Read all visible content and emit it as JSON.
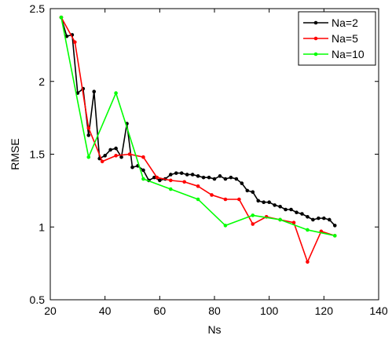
{
  "chart_data": {
    "type": "line",
    "title": "",
    "xlabel": "Ns",
    "ylabel": "RMSE",
    "xlim": [
      20,
      140
    ],
    "ylim": [
      0.5,
      2.5
    ],
    "xticks": [
      20,
      40,
      60,
      80,
      100,
      120,
      140
    ],
    "yticks": [
      0.5,
      1,
      1.5,
      2,
      2.5
    ],
    "xtick_labels": [
      "20",
      "40",
      "60",
      "80",
      "100",
      "120",
      "140"
    ],
    "ytick_labels": [
      "0.5",
      "1",
      "1.5",
      "2",
      "2.5"
    ],
    "grid": false,
    "legend_position": "top-right",
    "series": [
      {
        "name": "Na=2",
        "color": "#000000",
        "x": [
          24,
          26,
          28,
          30,
          32,
          34,
          36,
          38,
          40,
          42,
          44,
          46,
          48,
          50,
          52,
          54,
          56,
          58,
          60,
          62,
          64,
          66,
          68,
          70,
          72,
          74,
          76,
          78,
          80,
          82,
          84,
          86,
          88,
          90,
          92,
          94,
          96,
          98,
          100,
          102,
          104,
          106,
          108,
          110,
          112,
          114,
          116,
          118,
          120,
          122,
          124
        ],
        "y": [
          2.44,
          2.31,
          2.32,
          1.92,
          1.95,
          1.63,
          1.93,
          1.47,
          1.49,
          1.53,
          1.54,
          1.48,
          1.71,
          1.41,
          1.42,
          1.39,
          1.32,
          1.34,
          1.32,
          1.33,
          1.36,
          1.37,
          1.37,
          1.36,
          1.36,
          1.35,
          1.34,
          1.34,
          1.33,
          1.35,
          1.33,
          1.34,
          1.33,
          1.3,
          1.25,
          1.24,
          1.18,
          1.17,
          1.17,
          1.15,
          1.14,
          1.12,
          1.12,
          1.1,
          1.09,
          1.07,
          1.05,
          1.06,
          1.06,
          1.05,
          1.01
        ]
      },
      {
        "name": "Na=5",
        "color": "#ff0000",
        "x": [
          24,
          29,
          34,
          39,
          44,
          49,
          54,
          59,
          64,
          69,
          74,
          79,
          84,
          89,
          94,
          99,
          104,
          109,
          114,
          119,
          124
        ],
        "y": [
          2.44,
          2.27,
          1.68,
          1.45,
          1.49,
          1.5,
          1.48,
          1.34,
          1.32,
          1.31,
          1.28,
          1.22,
          1.19,
          1.19,
          1.02,
          1.07,
          1.05,
          1.03,
          0.76,
          0.97,
          0.94
        ]
      },
      {
        "name": "Na=10",
        "color": "#00ff00",
        "x": [
          24,
          34,
          44,
          54,
          64,
          74,
          84,
          94,
          104,
          114,
          124
        ],
        "y": [
          2.44,
          1.48,
          1.92,
          1.33,
          1.26,
          1.19,
          1.01,
          1.08,
          1.05,
          0.98,
          0.94
        ]
      }
    ]
  }
}
